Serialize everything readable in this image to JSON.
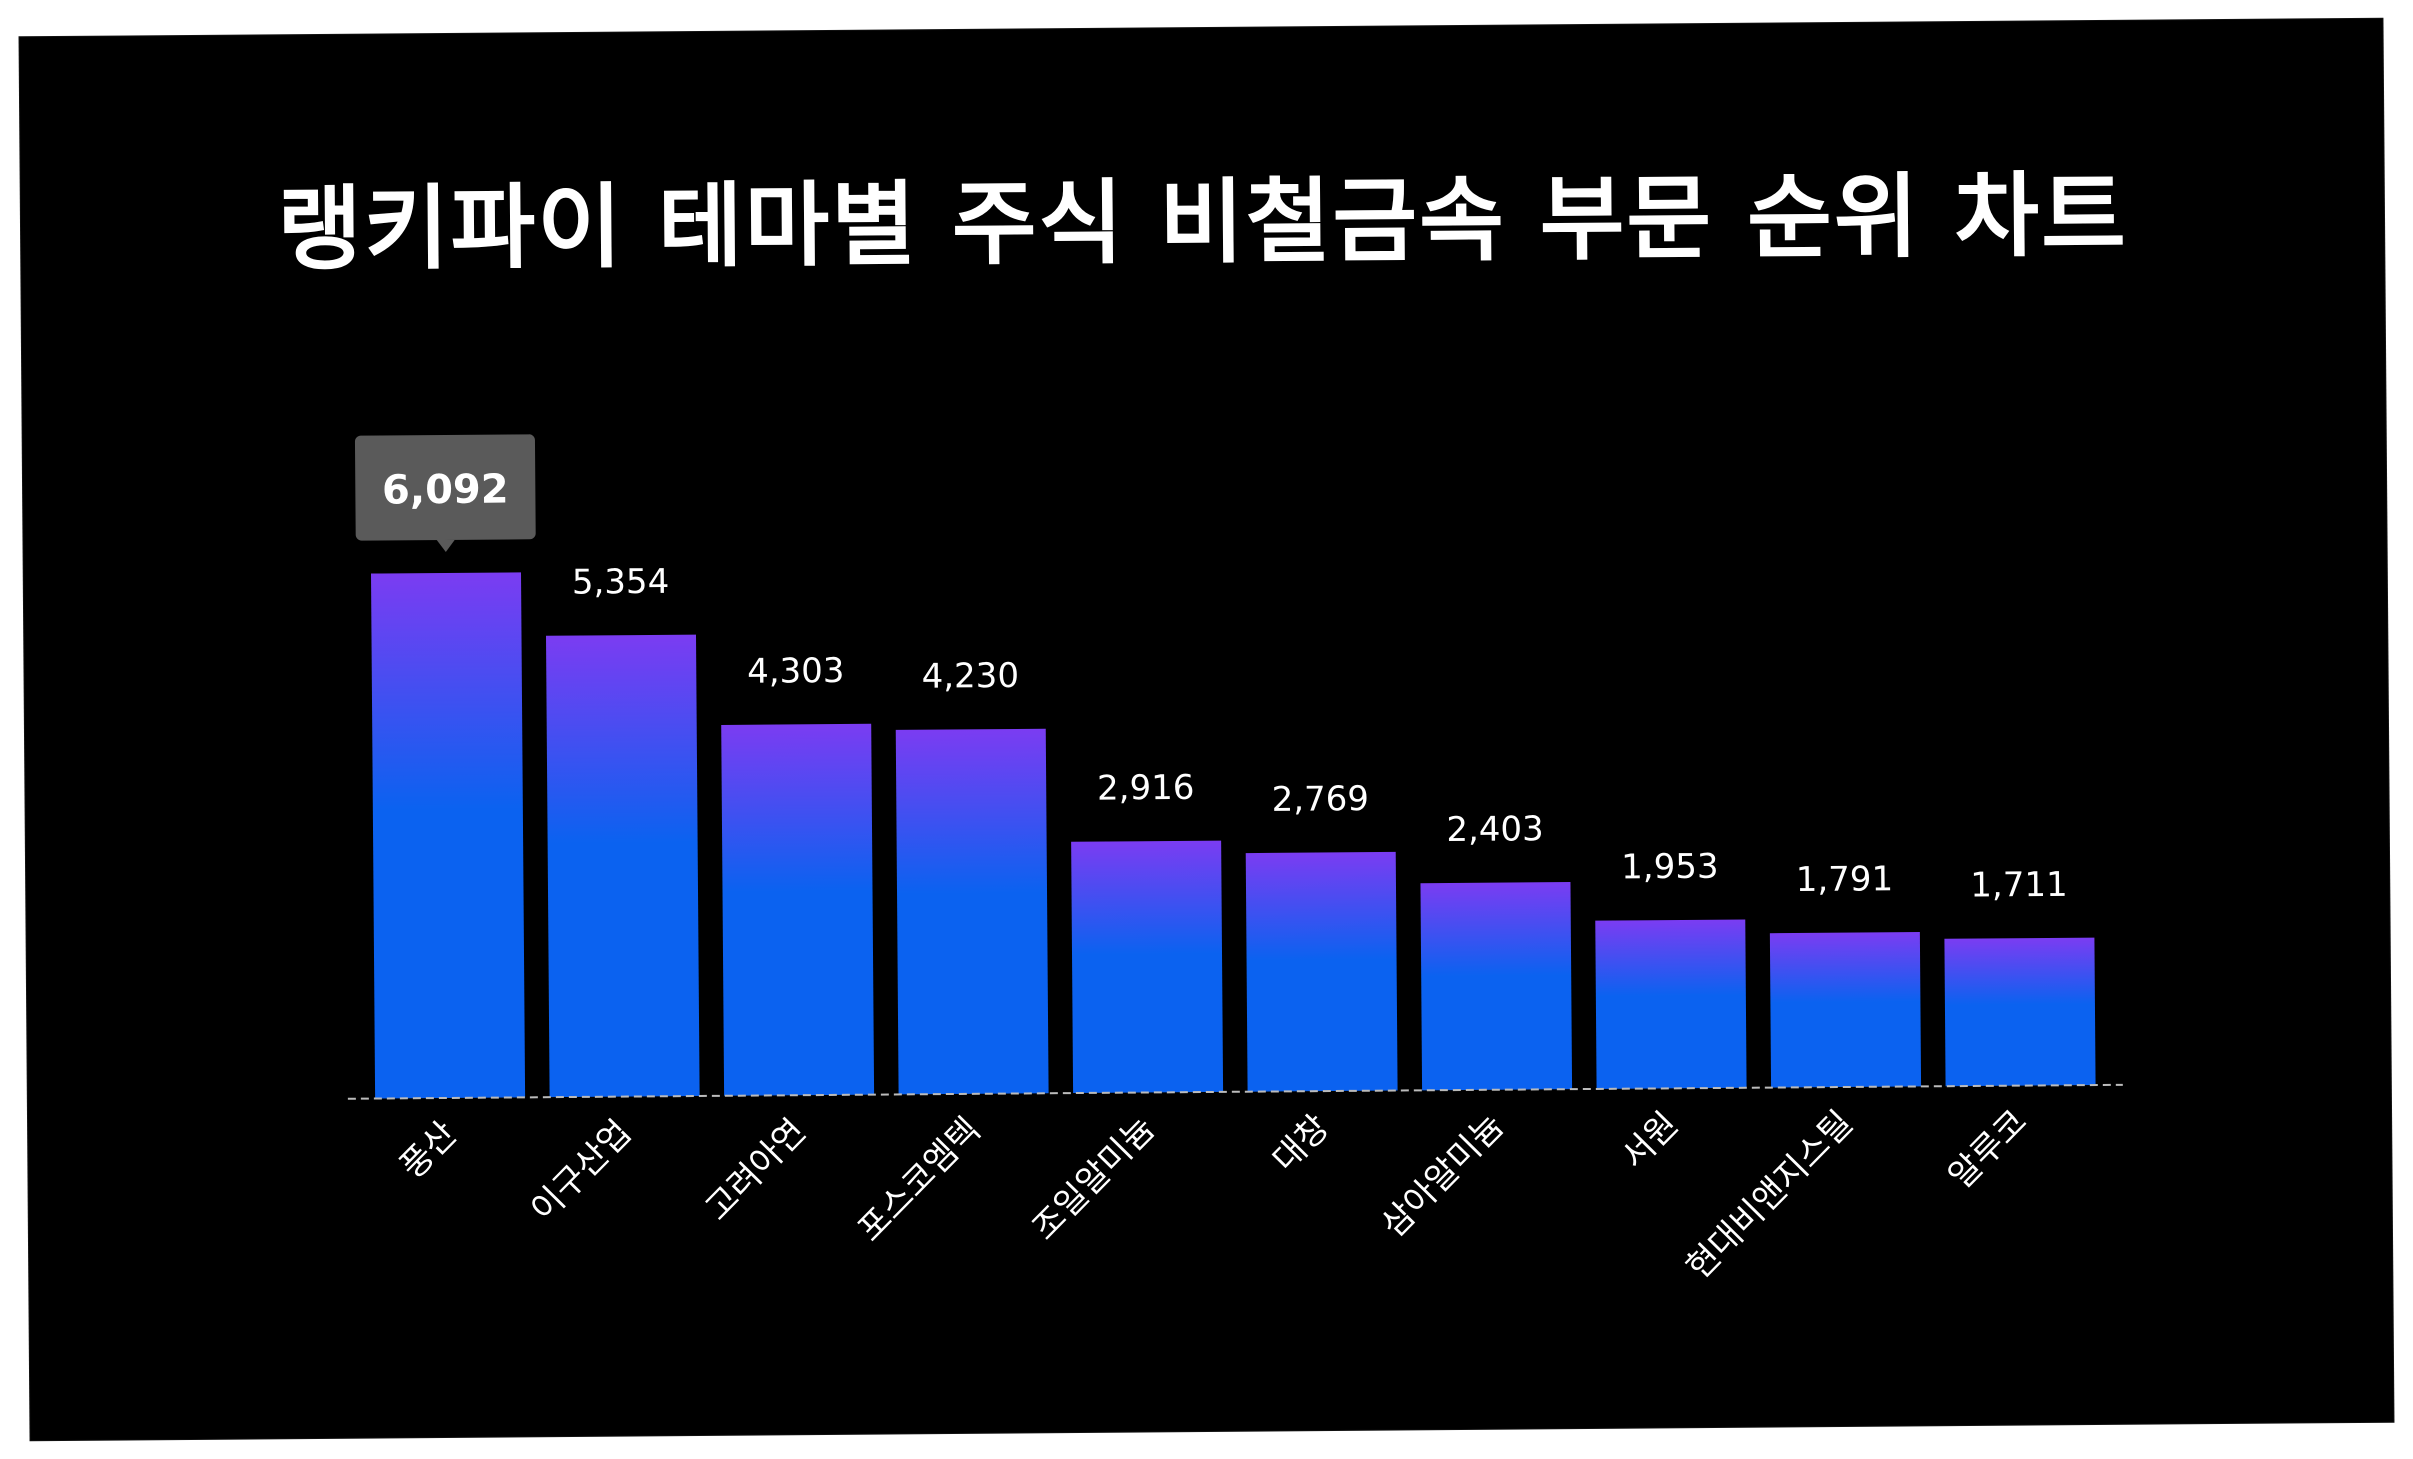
{
  "title": "랭키파이 테마별 주식 비철금속 부문 순위 차트",
  "colors": {
    "background": "#000000",
    "bar_top": "#7b3cf2",
    "bar_bottom": "#0b62f0",
    "label": "#ffffff",
    "highlight_box": "#5a5a5a",
    "baseline": "#bbbbbb"
  },
  "chart_data": {
    "type": "bar",
    "title": "랭키파이 테마별 주식 비철금속 부문 순위 차트",
    "categories": [
      "풍산",
      "이구산업",
      "고려아연",
      "포스코엠텍",
      "조일알미늄",
      "대창",
      "삼아알미늄",
      "서원",
      "현대비앤지스틸",
      "알루코"
    ],
    "values": [
      6092,
      5354,
      4303,
      4230,
      2916,
      2769,
      2403,
      1953,
      1791,
      1711
    ],
    "value_labels": [
      "6,092",
      "5,354",
      "4,303",
      "4,230",
      "2,916",
      "2,769",
      "2,403",
      "1,953",
      "1,791",
      "1,711"
    ],
    "highlighted_index": 0,
    "ylim": [
      0,
      6092
    ],
    "grid": false,
    "legend": "none",
    "xlabel": "",
    "ylabel": ""
  }
}
